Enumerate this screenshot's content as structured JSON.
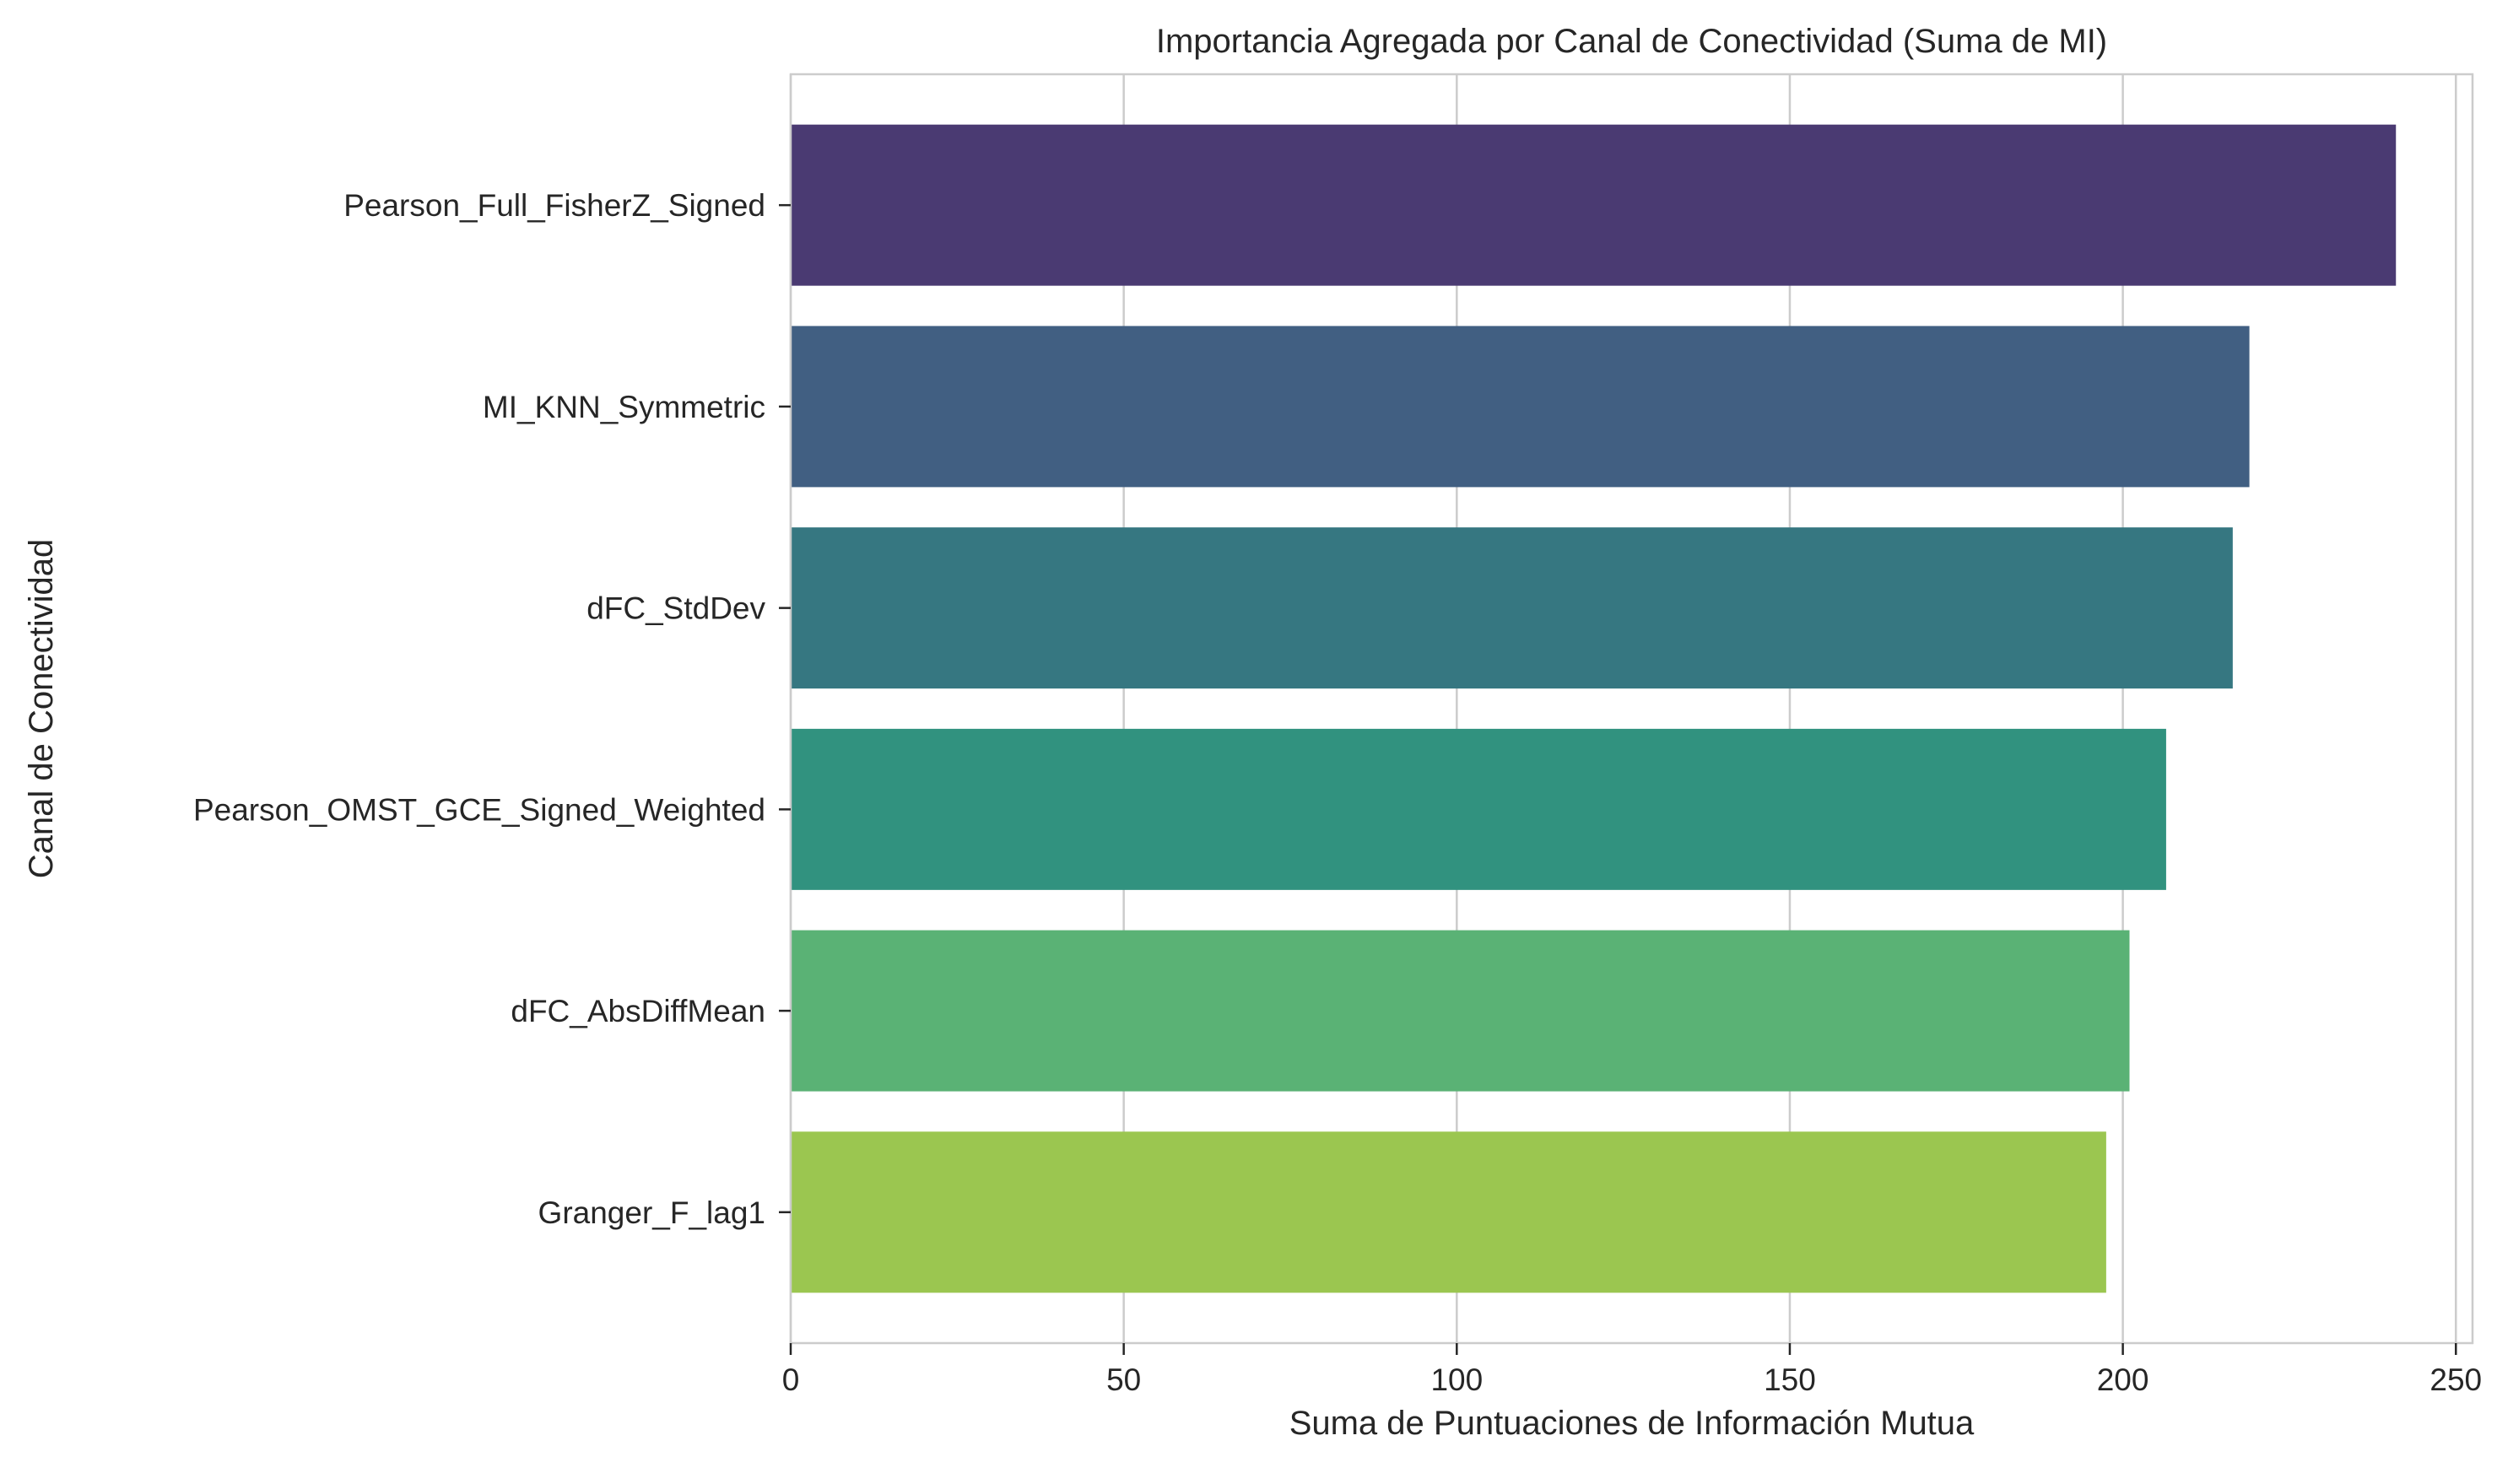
{
  "chart_data": {
    "type": "bar",
    "orientation": "horizontal",
    "title": "Importancia Agregada por Canal de Conectividad (Suma de MI)",
    "xlabel": "Suma de Puntuaciones de Información Mutua",
    "ylabel": "Canal de Conectividad",
    "categories": [
      "Pearson_Full_FisherZ_Signed",
      "MI_KNN_Symmetric",
      "dFC_StdDev",
      "Pearson_OMST_GCE_Signed_Weighted",
      "dFC_AbsDiffMean",
      "Granger_F_lag1"
    ],
    "values": [
      241,
      219,
      216.5,
      206.5,
      201,
      197.5
    ],
    "colors": [
      "#4a3a72",
      "#415f82",
      "#367781",
      "#31927f",
      "#5ab275",
      "#9bc650"
    ],
    "xlim": [
      0,
      252.5
    ],
    "xticks": [
      "0",
      "50",
      "100",
      "150",
      "200",
      "250"
    ],
    "grid": true,
    "legend": "none"
  }
}
